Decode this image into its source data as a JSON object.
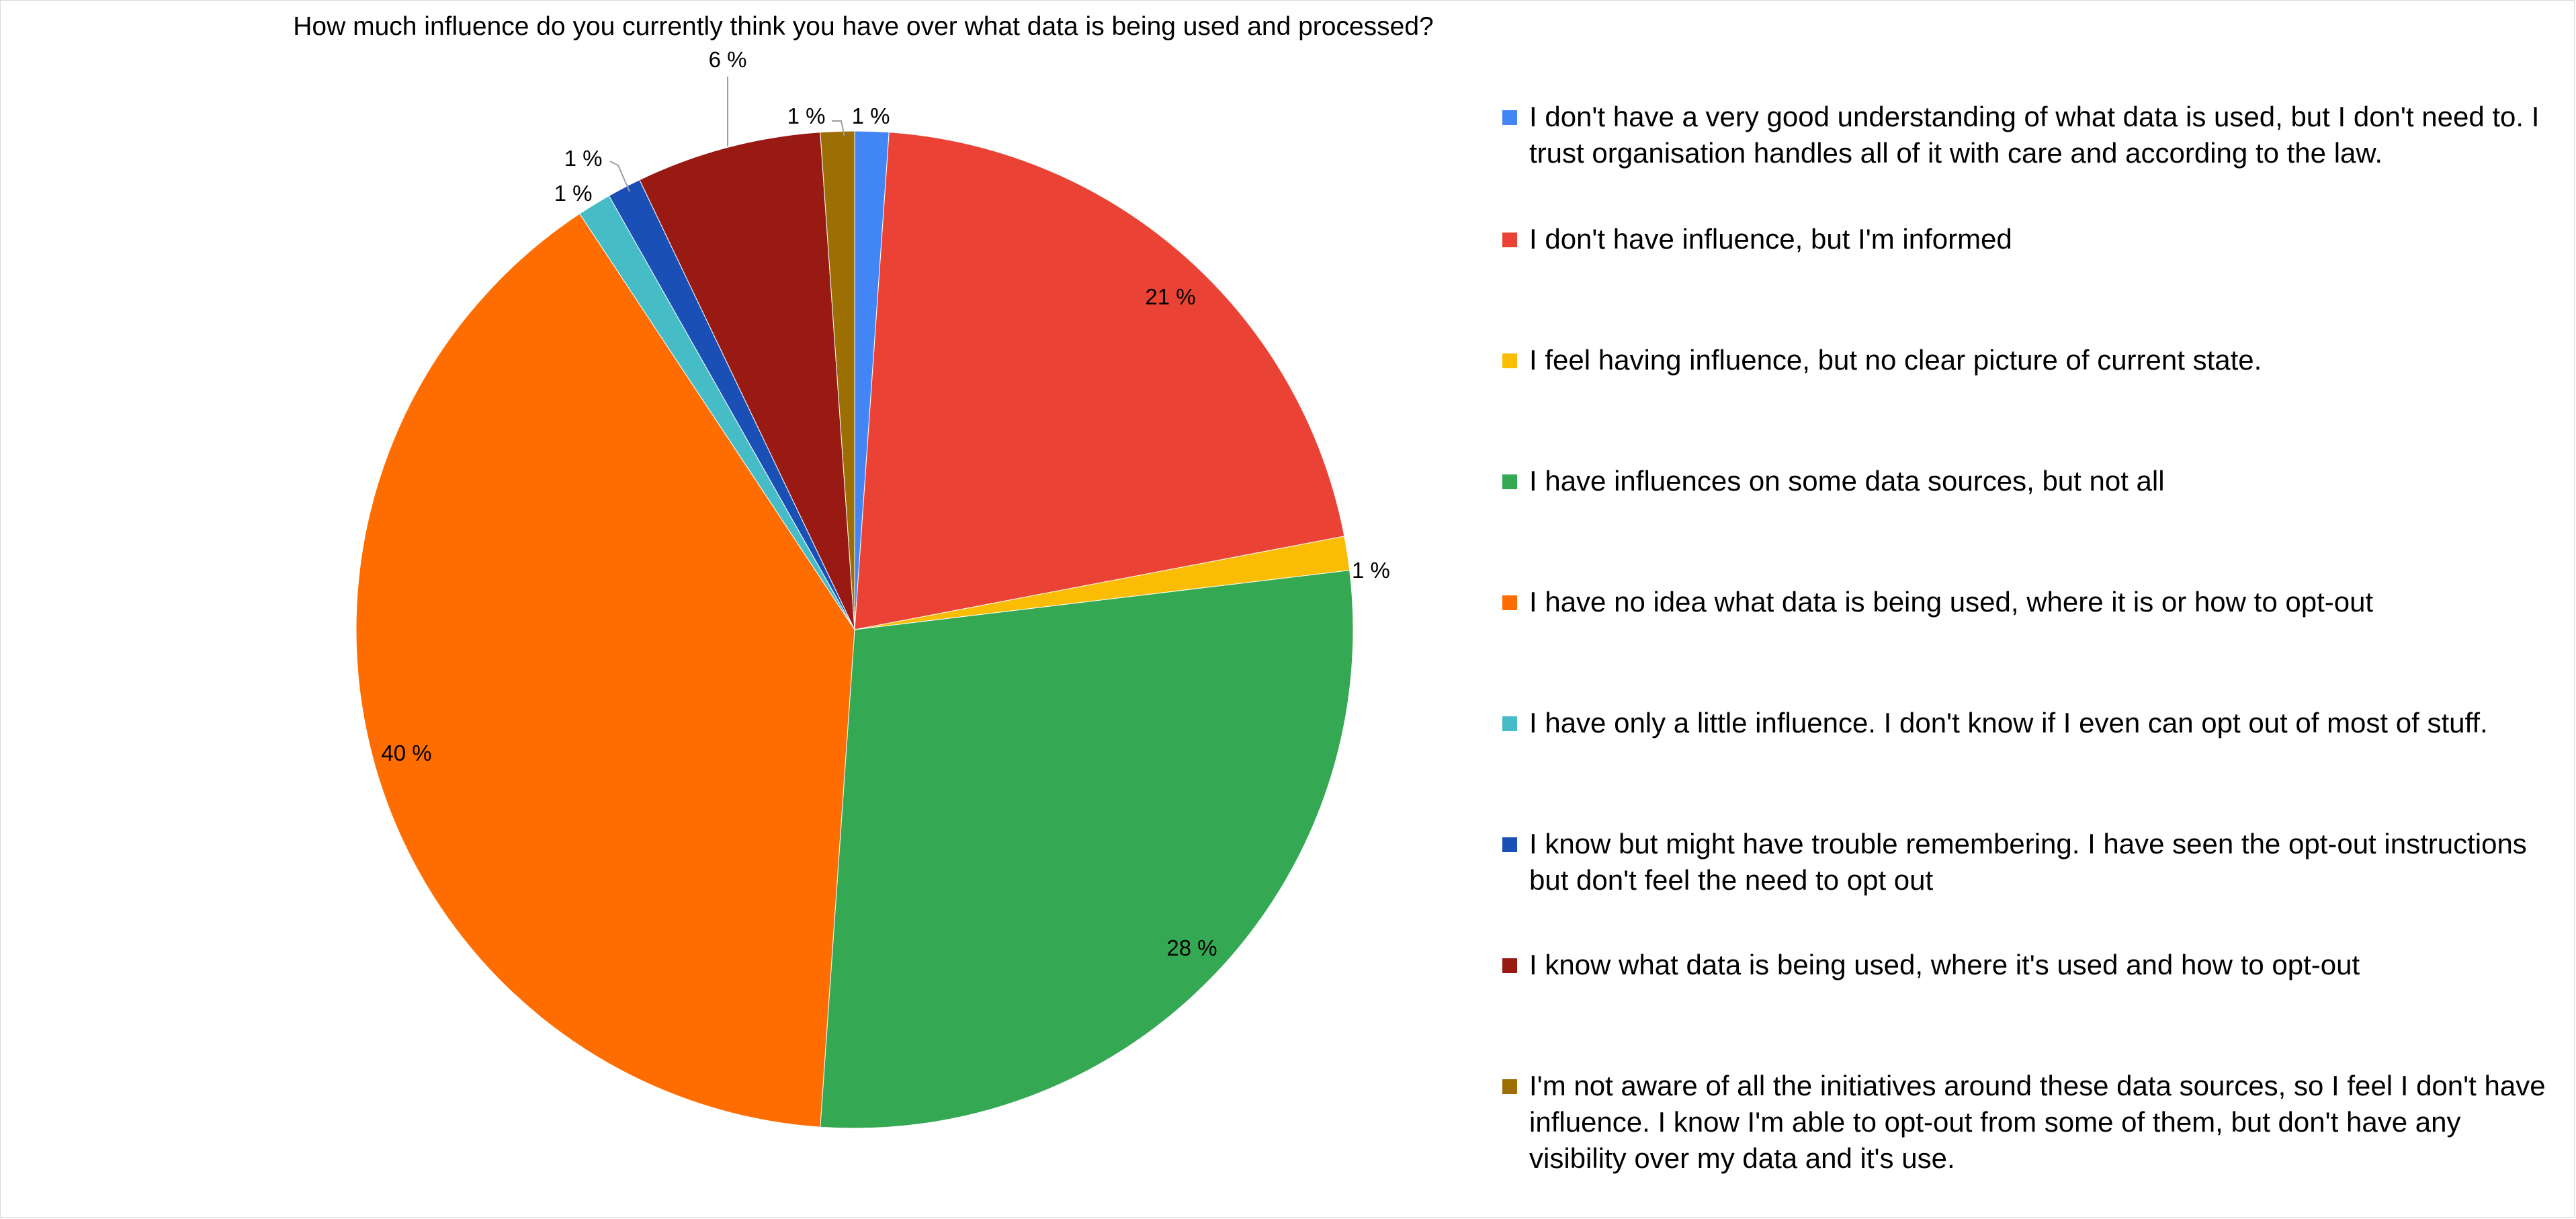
{
  "chart_data": {
    "type": "pie",
    "title": "How much influence do you currently think you have over what data is being used and processed?",
    "legend_position": "right",
    "slices": [
      {
        "label": "I don't have a very good understanding of what data is used, but I don't need to. I trust organisation handles all of it with care and according to the law.",
        "value": 1.1,
        "value_label": "1 %",
        "color": "#4285f4"
      },
      {
        "label": "I don't have influence, but I'm informed",
        "value": 20.9,
        "value_label": "21 %",
        "color": "#ea4335"
      },
      {
        "label": "I feel having influence, but no clear picture of current state.",
        "value": 1.1,
        "value_label": "1 %",
        "color": "#fbbc04"
      },
      {
        "label": "I have influences on some data sources, but not all",
        "value": 28.0,
        "value_label": "28 %",
        "color": "#34a853"
      },
      {
        "label": "I have no idea what data is being used, where it is or how to opt-out",
        "value": 39.6,
        "value_label": "40 %",
        "color": "#ff6d01"
      },
      {
        "label": "I have only a little influence. I don't know if I even can opt out of most of stuff.",
        "value": 1.1,
        "value_label": "1 %",
        "color": "#46bdc6"
      },
      {
        "label": "I know but might have trouble remembering. I have seen the opt-out instructions but don't feel the need to opt out",
        "value": 1.1,
        "value_label": "1 %",
        "color": "#1a4fb5"
      },
      {
        "label": "I know what data is being used, where it's used and how to opt-out",
        "value": 6.0,
        "value_label": "6 %",
        "color": "#991a13"
      },
      {
        "label": "I'm not aware of all the initiatives around these data sources, so I feel I don't have influence. I know I'm able to opt-out from some of them, but don't have any visibility over my data and it's use.",
        "value": 1.1,
        "value_label": "1 %",
        "color": "#9b6f04"
      }
    ]
  }
}
